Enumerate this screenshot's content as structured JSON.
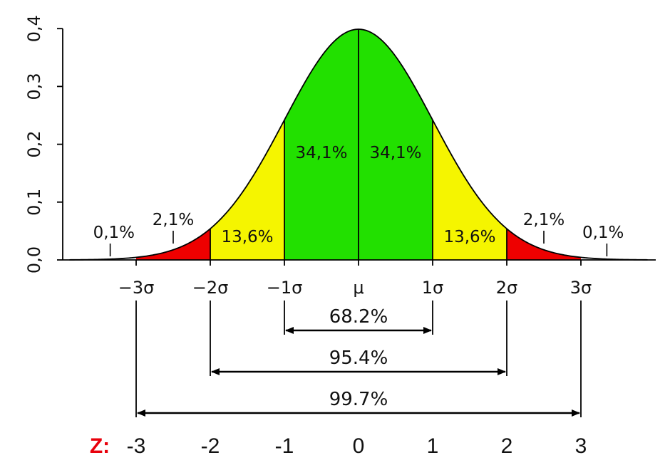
{
  "chart_data": {
    "type": "area",
    "distribution": "standard normal",
    "y_axis": {
      "ylim": [
        0,
        0.4
      ],
      "ticks": [
        0.0,
        0.1,
        0.2,
        0.3,
        0.4
      ],
      "tick_labels": [
        "0,0",
        "0,1",
        "0,2",
        "0,3",
        "0,4"
      ]
    },
    "x_axis": {
      "xlim": [
        -3.9,
        3.9
      ],
      "ticks": [
        -3,
        -2,
        -1,
        0,
        1,
        2,
        3
      ],
      "tick_labels": [
        "−3σ",
        "−2σ",
        "−1σ",
        "μ",
        "1σ",
        "2σ",
        "3σ"
      ]
    },
    "regions": [
      {
        "from": -3,
        "to": -2,
        "color": "#ee0000"
      },
      {
        "from": -2,
        "to": -1,
        "color": "#f5f500"
      },
      {
        "from": -1,
        "to": 1,
        "color": "#22e000"
      },
      {
        "from": 1,
        "to": 2,
        "color": "#f5f500"
      },
      {
        "from": 2,
        "to": 3,
        "color": "#ee0000"
      }
    ],
    "percent_labels": [
      {
        "text": "0,1%",
        "x": -3.3,
        "pointer_x": -3.35
      },
      {
        "text": "2,1%",
        "x": -2.5,
        "pointer_x": -2.5
      },
      {
        "text": "13,6%",
        "x": -1.5
      },
      {
        "text": "34,1%",
        "x": -0.5
      },
      {
        "text": "34,1%",
        "x": 0.5
      },
      {
        "text": "13,6%",
        "x": 1.5
      },
      {
        "text": "2,1%",
        "x": 2.5,
        "pointer_x": 2.5
      },
      {
        "text": "0,1%",
        "x": 3.3,
        "pointer_x": 3.35
      }
    ],
    "ranges": [
      {
        "from": -1,
        "to": 1,
        "label": "68.2%"
      },
      {
        "from": -2,
        "to": 2,
        "label": "95.4%"
      },
      {
        "from": -3,
        "to": 3,
        "label": "99.7%"
      }
    ],
    "z_scores": {
      "title": "Z:",
      "values": [
        "-3",
        "-2",
        "-1",
        "0",
        "1",
        "2",
        "3"
      ]
    },
    "colors": {
      "red": "#ee0000",
      "yellow": "#f5f500",
      "green": "#22e000",
      "z_title": "#e8000b",
      "line": "#000000"
    }
  }
}
